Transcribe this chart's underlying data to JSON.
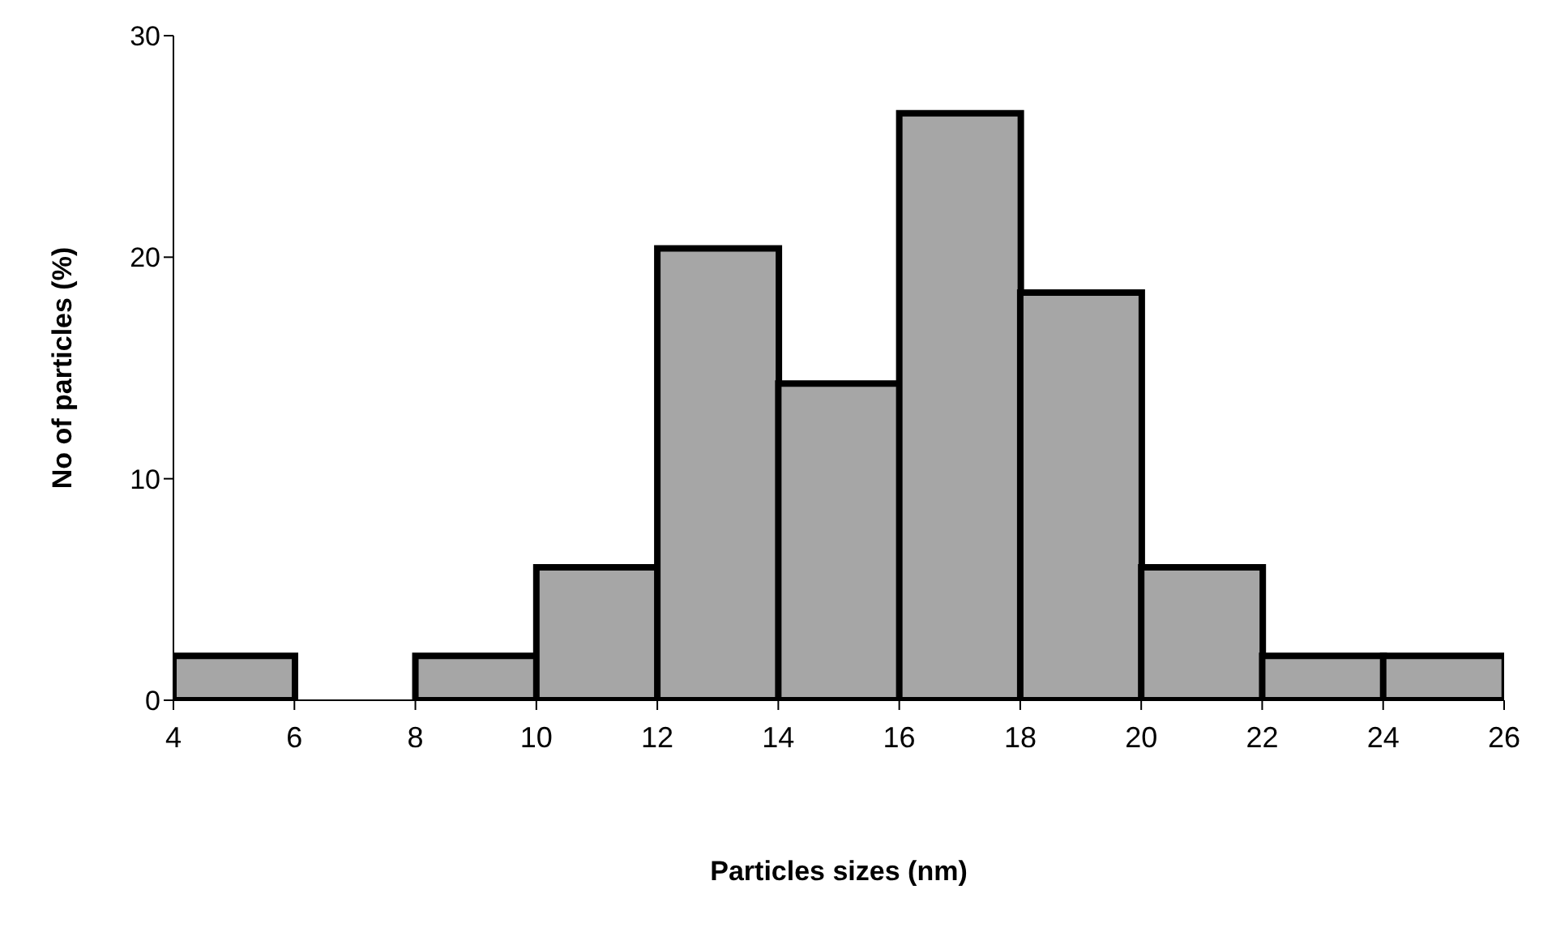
{
  "chart_data": {
    "type": "histogram",
    "xlabel": "Particles sizes (nm)",
    "ylabel": "No of particles (%)",
    "bins": [
      4,
      6,
      8,
      10,
      12,
      14,
      16,
      18,
      20,
      22,
      24,
      26
    ],
    "values": [
      2,
      0,
      2,
      6,
      20.4,
      14.3,
      26.5,
      18.4,
      6,
      2,
      2
    ],
    "color": "#a6a6a6",
    "xlim": [
      4,
      26
    ],
    "xticks": [
      4,
      6,
      8,
      10,
      12,
      14,
      16,
      18,
      20,
      22,
      24,
      26
    ],
    "ylim": [
      0,
      30
    ],
    "yticks": [
      0,
      10,
      20,
      30
    ],
    "grid": false,
    "legend": false
  }
}
